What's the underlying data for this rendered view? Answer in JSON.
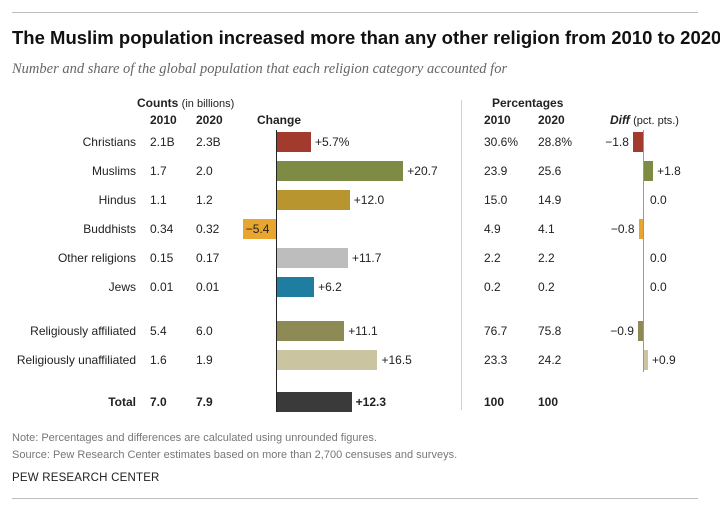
{
  "title": "The Muslim population increased more than any other religion from 2010 to 2020",
  "subtitle": "Number and share of the global population that each religion category accounted for",
  "headers": {
    "counts": "Counts",
    "counts_unit": "(in billions)",
    "year_2010": "2010",
    "year_2020": "2020",
    "change": "Change",
    "percentages": "Percentages",
    "diff": "Diff",
    "diff_unit": "(pct. pts.)"
  },
  "rows": [
    {
      "label": "Christians",
      "c2010": "2.1B",
      "c2020": "2.3B",
      "change": 5.7,
      "change_label": "+5.7%",
      "p2010": "30.6%",
      "p2020": "28.8%",
      "diff": -1.8,
      "diff_label": "−1.8",
      "color": "#a23b2e"
    },
    {
      "label": "Muslims",
      "c2010": "1.7",
      "c2020": "2.0",
      "change": 20.7,
      "change_label": "+20.7",
      "p2010": "23.9",
      "p2020": "25.6",
      "diff": 1.8,
      "diff_label": "+1.8",
      "color": "#7d8b45"
    },
    {
      "label": "Hindus",
      "c2010": "1.1",
      "c2020": "1.2",
      "change": 12.0,
      "change_label": "+12.0",
      "p2010": "15.0",
      "p2020": "14.9",
      "diff": 0.0,
      "diff_label": "0.0",
      "color": "#b8952e"
    },
    {
      "label": "Buddhists",
      "c2010": "0.34",
      "c2020": "0.32",
      "change": -5.4,
      "change_label": "−5.4",
      "p2010": "4.9",
      "p2020": "4.1",
      "diff": -0.8,
      "diff_label": "−0.8",
      "color": "#e8a530"
    },
    {
      "label": "Other religions",
      "c2010": "0.15",
      "c2020": "0.17",
      "change": 11.7,
      "change_label": "+11.7",
      "p2010": "2.2",
      "p2020": "2.2",
      "diff": 0.0,
      "diff_label": "0.0",
      "color": "#bdbdbd"
    },
    {
      "label": "Jews",
      "c2010": "0.01",
      "c2020": "0.01",
      "change": 6.2,
      "change_label": "+6.2",
      "p2010": "0.2",
      "p2020": "0.2",
      "diff": 0.0,
      "diff_label": "0.0",
      "color": "#1f7ea0"
    },
    {
      "label": "Religiously affiliated",
      "c2010": "5.4",
      "c2020": "6.0",
      "change": 11.1,
      "change_label": "+11.1",
      "p2010": "76.7",
      "p2020": "75.8",
      "diff": -0.9,
      "diff_label": "−0.9",
      "color": "#8e8a56"
    },
    {
      "label": "Religiously unaffiliated",
      "c2010": "1.6",
      "c2020": "1.9",
      "change": 16.5,
      "change_label": "+16.5",
      "p2010": "23.3",
      "p2020": "24.2",
      "diff": 0.9,
      "diff_label": "+0.9",
      "color": "#cbc4a0"
    },
    {
      "label": "Total",
      "c2010": "7.0",
      "c2020": "7.9",
      "change": 12.3,
      "change_label": "+12.3",
      "p2010": "100",
      "p2020": "100",
      "diff": null,
      "diff_label": "",
      "color": "#3a3a3a"
    }
  ],
  "chart_data": {
    "type": "bar",
    "title": "The Muslim population increased more than any other religion from 2010 to 2020",
    "categories": [
      "Christians",
      "Muslims",
      "Hindus",
      "Buddhists",
      "Other religions",
      "Jews",
      "Religiously affiliated",
      "Religiously unaffiliated",
      "Total"
    ],
    "series": [
      {
        "name": "Change (%)",
        "values": [
          5.7,
          20.7,
          12.0,
          -5.4,
          11.7,
          6.2,
          11.1,
          16.5,
          12.3
        ]
      },
      {
        "name": "Diff (pct. pts.)",
        "values": [
          -1.8,
          1.8,
          0.0,
          -0.8,
          0.0,
          0.0,
          -0.9,
          0.9,
          null
        ]
      }
    ],
    "xlabel": "",
    "ylabel": ""
  },
  "notes": {
    "note": "Note: Percentages and differences are calculated using unrounded figures.",
    "source": "Source: Pew Research Center estimates based on more than 2,700 censuses and surveys."
  },
  "brand": "PEW RESEARCH CENTER"
}
